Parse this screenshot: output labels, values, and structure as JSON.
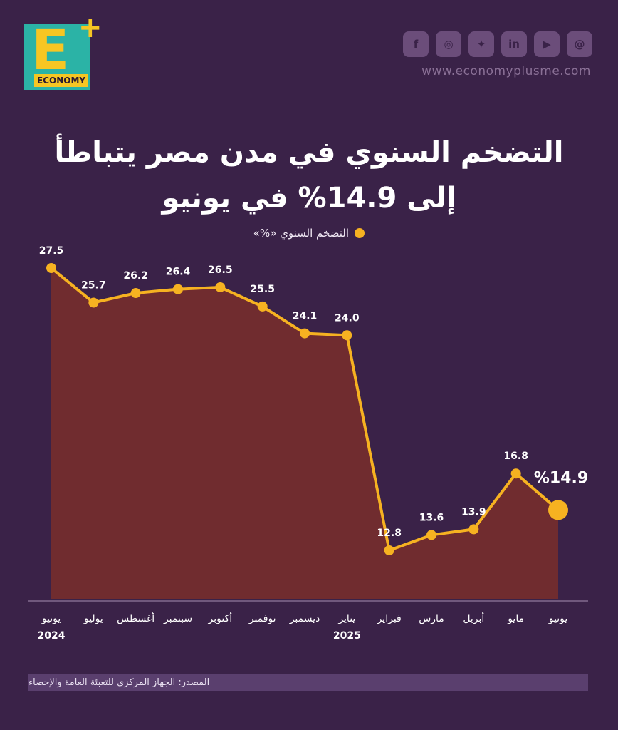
{
  "brand": {
    "logo_letter": "E",
    "logo_plus": "+",
    "logo_word": "ECONOMY",
    "website": "www.economyplusme.com"
  },
  "social_icons": [
    "facebook-icon",
    "instagram-icon",
    "twitter-icon",
    "linkedin-icon",
    "youtube-icon",
    "threads-icon"
  ],
  "title_line1": "التضخم السنوي في مدن مصر يتباطأ",
  "title_line2": "إلى 14.9% في يونيو",
  "source": "المصدر: الجهاز المركزي للتعبئة العامة والإحصاء",
  "colors": {
    "background": "#3a2248",
    "line": "#f6b221",
    "area": "#7a2e2c",
    "text": "#ffffff"
  },
  "chart_data": {
    "type": "line",
    "legend": "التضخم السنوي «%»",
    "categories": [
      "يونيو",
      "يوليو",
      "أغسطس",
      "سبتمبر",
      "أكتوبر",
      "نوفمبر",
      "ديسمبر",
      "يناير",
      "فبراير",
      "مارس",
      "أبريل",
      "مايو",
      "يونيو"
    ],
    "year_labels": [
      {
        "index": 0,
        "label": "2024"
      },
      {
        "index": 7,
        "label": "2025"
      }
    ],
    "values": [
      27.5,
      25.7,
      26.2,
      26.4,
      26.5,
      25.5,
      24.1,
      24.0,
      12.8,
      13.6,
      13.9,
      16.8,
      14.9
    ],
    "value_labels": [
      "27.5",
      "25.7",
      "26.2",
      "26.4",
      "26.5",
      "25.5",
      "24.1",
      "24.0",
      "12.8",
      "13.6",
      "13.9",
      "16.8",
      "%14.9"
    ],
    "highlight_index": 12,
    "ylim": [
      11,
      28.5
    ],
    "grid": false
  }
}
